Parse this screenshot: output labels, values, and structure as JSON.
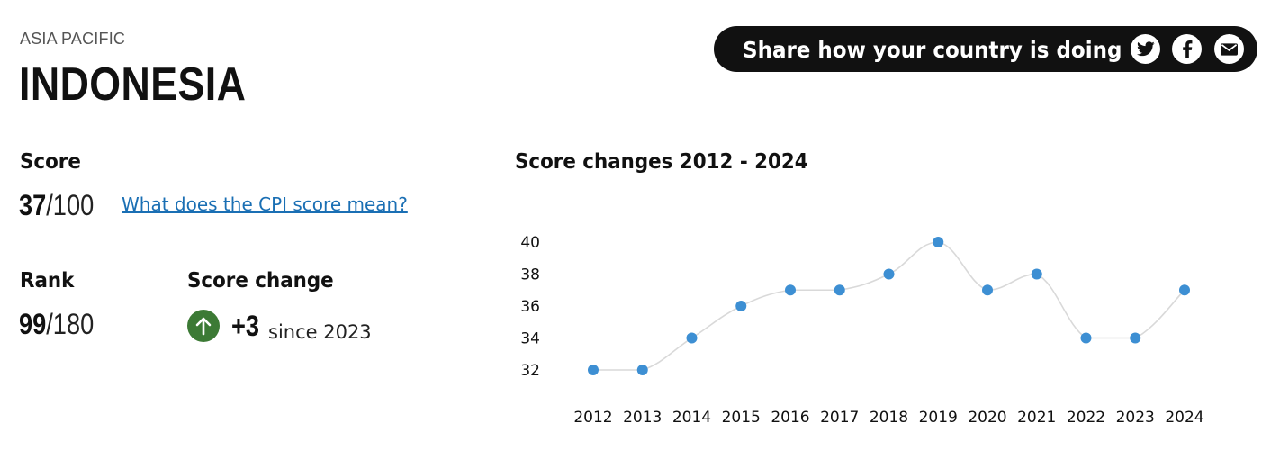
{
  "header": {
    "region": "ASIA PACIFIC",
    "country": "INDONESIA"
  },
  "share": {
    "text": "Share how your country is doing",
    "icons": [
      "twitter-icon",
      "facebook-icon",
      "email-icon"
    ]
  },
  "score": {
    "label": "Score",
    "value": "37",
    "max": "/100",
    "link_text": "What does the CPI score mean?"
  },
  "rank": {
    "label": "Rank",
    "value": "99",
    "max": "/180"
  },
  "score_change": {
    "label": "Score change",
    "delta": "+3",
    "since": "since 2023",
    "direction": "up",
    "color": "#3c7a35"
  },
  "chart_data": {
    "type": "line",
    "title": "Score changes 2012 - 2024",
    "x": [
      "2012",
      "2013",
      "2014",
      "2015",
      "2016",
      "2017",
      "2018",
      "2019",
      "2020",
      "2021",
      "2022",
      "2023",
      "2024"
    ],
    "values": [
      32,
      32,
      34,
      36,
      37,
      37,
      38,
      40,
      37,
      38,
      34,
      34,
      37
    ],
    "yticks": [
      32,
      34,
      36,
      38,
      40
    ],
    "ylim": [
      32,
      40
    ],
    "grid": false,
    "line_color": "#d9d9d9",
    "point_color": "#3d8fd3"
  }
}
